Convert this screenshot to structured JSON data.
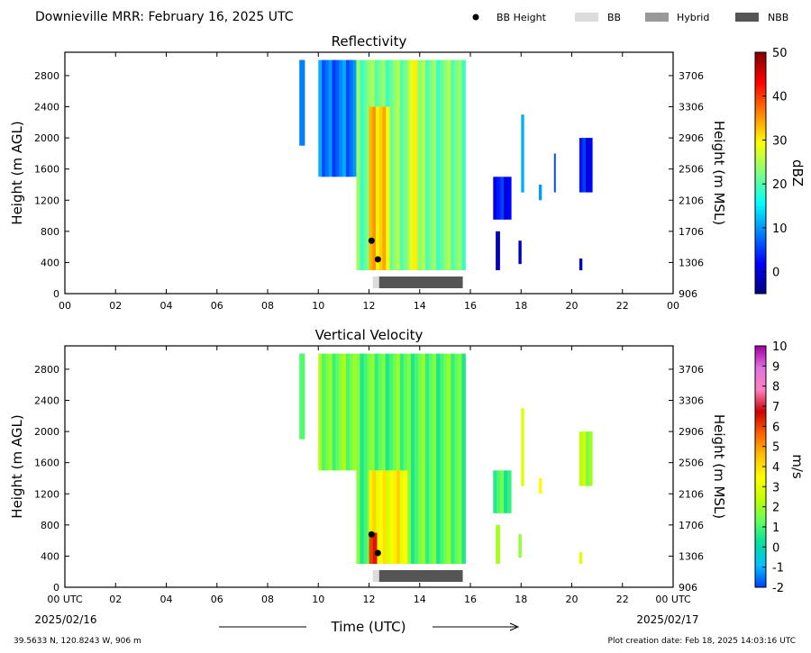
{
  "header": {
    "title": "Downieville MRR:  February 16, 2025 UTC",
    "legend": [
      {
        "label": "BB Height",
        "marker": "dot",
        "color": "#000000"
      },
      {
        "label": "BB",
        "marker": "box",
        "color": "#dcdcdc"
      },
      {
        "label": "Hybrid",
        "marker": "box",
        "color": "#999999"
      },
      {
        "label": "NBB",
        "marker": "box",
        "color": "#555555"
      }
    ]
  },
  "footer": {
    "location": "39.5633 N, 120.8243 W, 906 m",
    "creation": "Plot creation date: Feb 18, 2025 14:03:16 UTC",
    "xlabel": "Time (UTC)",
    "start_date": "2025/02/16",
    "end_date": "2025/02/17"
  },
  "chart_data": [
    {
      "type": "heatmap",
      "title": "Reflectivity",
      "ylabel": "Height (m AGL)",
      "y2label": "Height (m MSL)",
      "xlim": [
        0,
        24
      ],
      "ylim": [
        0,
        3100
      ],
      "x_tick_labels": [
        "00",
        "02",
        "04",
        "06",
        "08",
        "10",
        "12",
        "14",
        "16",
        "18",
        "20",
        "22",
        "00"
      ],
      "y_ticks": [
        0,
        400,
        800,
        1200,
        1600,
        2000,
        2400,
        2800
      ],
      "y2_tick_labels": [
        "906",
        "1306",
        "1706",
        "2106",
        "2506",
        "2906",
        "3306",
        "3706"
      ],
      "colorbar": {
        "label": "dBZ",
        "range": [
          -5,
          50
        ],
        "ticks": [
          0,
          10,
          20,
          30,
          40,
          50
        ],
        "colors": [
          "#000080",
          "#0000ff",
          "#0080ff",
          "#00ffff",
          "#80ff80",
          "#ffff00",
          "#ff8000",
          "#ff0000",
          "#800000"
        ]
      },
      "bb_height_points": [
        {
          "x": 12.1,
          "y": 680
        },
        {
          "x": 12.35,
          "y": 440
        }
      ],
      "bright_band_bar": [
        {
          "type": "BB",
          "x": [
            12.15,
            12.4
          ]
        },
        {
          "type": "NBB",
          "x": [
            12.4,
            15.7
          ]
        }
      ],
      "echo_regions": [
        {
          "x": [
            9.25,
            9.45
          ],
          "y": [
            1900,
            3000
          ],
          "value": 12
        },
        {
          "x": [
            10.0,
            11.5
          ],
          "y": [
            1500,
            3000
          ],
          "value": 8
        },
        {
          "x": [
            11.5,
            15.8
          ],
          "y": [
            300,
            3000
          ],
          "value": 22
        },
        {
          "x": [
            12.0,
            12.8
          ],
          "y": [
            300,
            2400
          ],
          "value": 32
        },
        {
          "x": [
            13.6,
            13.9
          ],
          "y": [
            300,
            3000
          ],
          "value": 28
        },
        {
          "x": [
            16.9,
            17.6
          ],
          "y": [
            950,
            1500
          ],
          "value": 2
        },
        {
          "x": [
            17.0,
            17.15
          ],
          "y": [
            300,
            800
          ],
          "value": 0
        },
        {
          "x": [
            17.9,
            18.0
          ],
          "y": [
            380,
            680
          ],
          "value": 2
        },
        {
          "x": [
            18.0,
            18.1
          ],
          "y": [
            1300,
            2300
          ],
          "value": 8
        },
        {
          "x": [
            18.7,
            18.8
          ],
          "y": [
            1200,
            1400
          ],
          "value": 8
        },
        {
          "x": [
            19.3,
            19.35
          ],
          "y": [
            1300,
            1800
          ],
          "value": 5
        },
        {
          "x": [
            20.3,
            20.8
          ],
          "y": [
            1300,
            2000
          ],
          "value": 3
        },
        {
          "x": [
            20.3,
            20.4
          ],
          "y": [
            300,
            450
          ],
          "value": 0
        }
      ]
    },
    {
      "type": "heatmap",
      "title": "Vertical Velocity",
      "ylabel": "Height (m AGL)",
      "y2label": "Height (m MSL)",
      "xlim": [
        0,
        24
      ],
      "ylim": [
        0,
        3100
      ],
      "x_tick_labels": [
        "00 UTC",
        "02",
        "04",
        "06",
        "08",
        "10",
        "12",
        "14",
        "16",
        "18",
        "20",
        "22",
        "00 UTC"
      ],
      "y_ticks": [
        0,
        400,
        800,
        1200,
        1600,
        2000,
        2400,
        2800
      ],
      "y2_tick_labels": [
        "906",
        "1306",
        "1706",
        "2106",
        "2506",
        "2906",
        "3306",
        "3706"
      ],
      "colorbar": {
        "label": "m/s",
        "range": [
          -2,
          10
        ],
        "ticks": [
          -2,
          -1,
          0,
          1,
          2,
          3,
          4,
          5,
          6,
          7,
          8,
          9,
          10
        ],
        "colors": [
          "#0040ff",
          "#00c0ff",
          "#00e0a0",
          "#60ff60",
          "#c0ff00",
          "#ffff00",
          "#ffc000",
          "#ff6000",
          "#cc0000",
          "#ff80c0",
          "#e070e0",
          "#a000a0"
        ]
      },
      "bb_height_points": [
        {
          "x": 12.1,
          "y": 680
        },
        {
          "x": 12.35,
          "y": 440
        }
      ],
      "bright_band_bar": [
        {
          "type": "BB",
          "x": [
            12.15,
            12.4
          ]
        },
        {
          "type": "NBB",
          "x": [
            12.4,
            15.7
          ]
        }
      ],
      "echo_regions": [
        {
          "x": [
            9.25,
            9.45
          ],
          "y": [
            1900,
            3000
          ],
          "value": 1.8
        },
        {
          "x": [
            10.0,
            11.5
          ],
          "y": [
            1500,
            3000
          ],
          "value": 1.5
        },
        {
          "x": [
            11.5,
            15.8
          ],
          "y": [
            300,
            3000
          ],
          "value": 1.2
        },
        {
          "x": [
            12.0,
            13.5
          ],
          "y": [
            300,
            1500
          ],
          "value": 3.5
        },
        {
          "x": [
            12.0,
            12.3
          ],
          "y": [
            300,
            700
          ],
          "value": 6
        },
        {
          "x": [
            16.9,
            17.6
          ],
          "y": [
            950,
            1500
          ],
          "value": 0.8
        },
        {
          "x": [
            17.0,
            17.15
          ],
          "y": [
            300,
            800
          ],
          "value": 2.5
        },
        {
          "x": [
            17.9,
            18.0
          ],
          "y": [
            380,
            680
          ],
          "value": 2.5
        },
        {
          "x": [
            18.0,
            18.1
          ],
          "y": [
            1300,
            2300
          ],
          "value": 2.2
        },
        {
          "x": [
            18.7,
            18.8
          ],
          "y": [
            1200,
            1400
          ],
          "value": 3
        },
        {
          "x": [
            20.3,
            20.8
          ],
          "y": [
            1300,
            2000
          ],
          "value": 2
        },
        {
          "x": [
            20.3,
            20.4
          ],
          "y": [
            300,
            450
          ],
          "value": 3
        }
      ]
    }
  ]
}
